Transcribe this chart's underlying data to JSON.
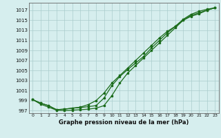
{
  "xlabel": "Graphe pression niveau de la mer (hPa)",
  "ylim": [
    996.5,
    1018.5
  ],
  "xlim": [
    -0.5,
    23.5
  ],
  "xticks": [
    0,
    1,
    2,
    3,
    4,
    5,
    6,
    7,
    8,
    9,
    10,
    11,
    12,
    13,
    14,
    15,
    16,
    17,
    18,
    19,
    20,
    21,
    22,
    23
  ],
  "yticks": [
    997,
    999,
    1001,
    1003,
    1005,
    1007,
    1009,
    1011,
    1013,
    1015,
    1017
  ],
  "bg_color": "#d6eeee",
  "grid_color": "#aacccc",
  "line_color": "#1a6b1a",
  "line1_x": [
    0,
    1,
    2,
    3,
    4,
    5,
    6,
    7,
    8,
    9,
    10,
    11,
    12,
    13,
    14,
    15,
    16,
    17,
    18,
    19,
    20,
    21,
    22,
    23
  ],
  "line1_y": [
    999.2,
    998.5,
    998.0,
    997.2,
    997.3,
    997.5,
    997.6,
    997.8,
    998.0,
    999.5,
    1002.0,
    1003.8,
    1005.2,
    1006.5,
    1007.8,
    1009.5,
    1011.0,
    1012.5,
    1013.8,
    1015.2,
    1016.2,
    1016.8,
    1017.2,
    1017.5
  ],
  "line2_x": [
    0,
    1,
    2,
    3,
    4,
    5,
    6,
    7,
    8,
    9,
    10,
    11,
    12,
    13,
    14,
    15,
    16,
    17,
    18,
    19,
    20,
    21,
    22,
    23
  ],
  "line2_y": [
    999.2,
    998.5,
    998.0,
    997.2,
    997.3,
    997.5,
    997.7,
    998.2,
    999.0,
    1000.5,
    1002.5,
    1004.0,
    1005.5,
    1007.0,
    1008.5,
    1010.0,
    1011.5,
    1012.8,
    1013.8,
    1015.0,
    1015.8,
    1016.3,
    1017.0,
    1017.5
  ],
  "line3_x": [
    0,
    1,
    2,
    3,
    4,
    5,
    6,
    7,
    8,
    9,
    10,
    11,
    12,
    13,
    14,
    15,
    16,
    17,
    18,
    19,
    20,
    21,
    22,
    23
  ],
  "line3_y": [
    999.2,
    998.3,
    997.7,
    997.1,
    997.0,
    997.1,
    997.2,
    997.3,
    997.5,
    998.0,
    1000.0,
    1002.5,
    1004.5,
    1006.0,
    1007.5,
    1009.0,
    1010.5,
    1012.0,
    1013.5,
    1015.0,
    1016.0,
    1016.5,
    1017.0,
    1017.5
  ]
}
